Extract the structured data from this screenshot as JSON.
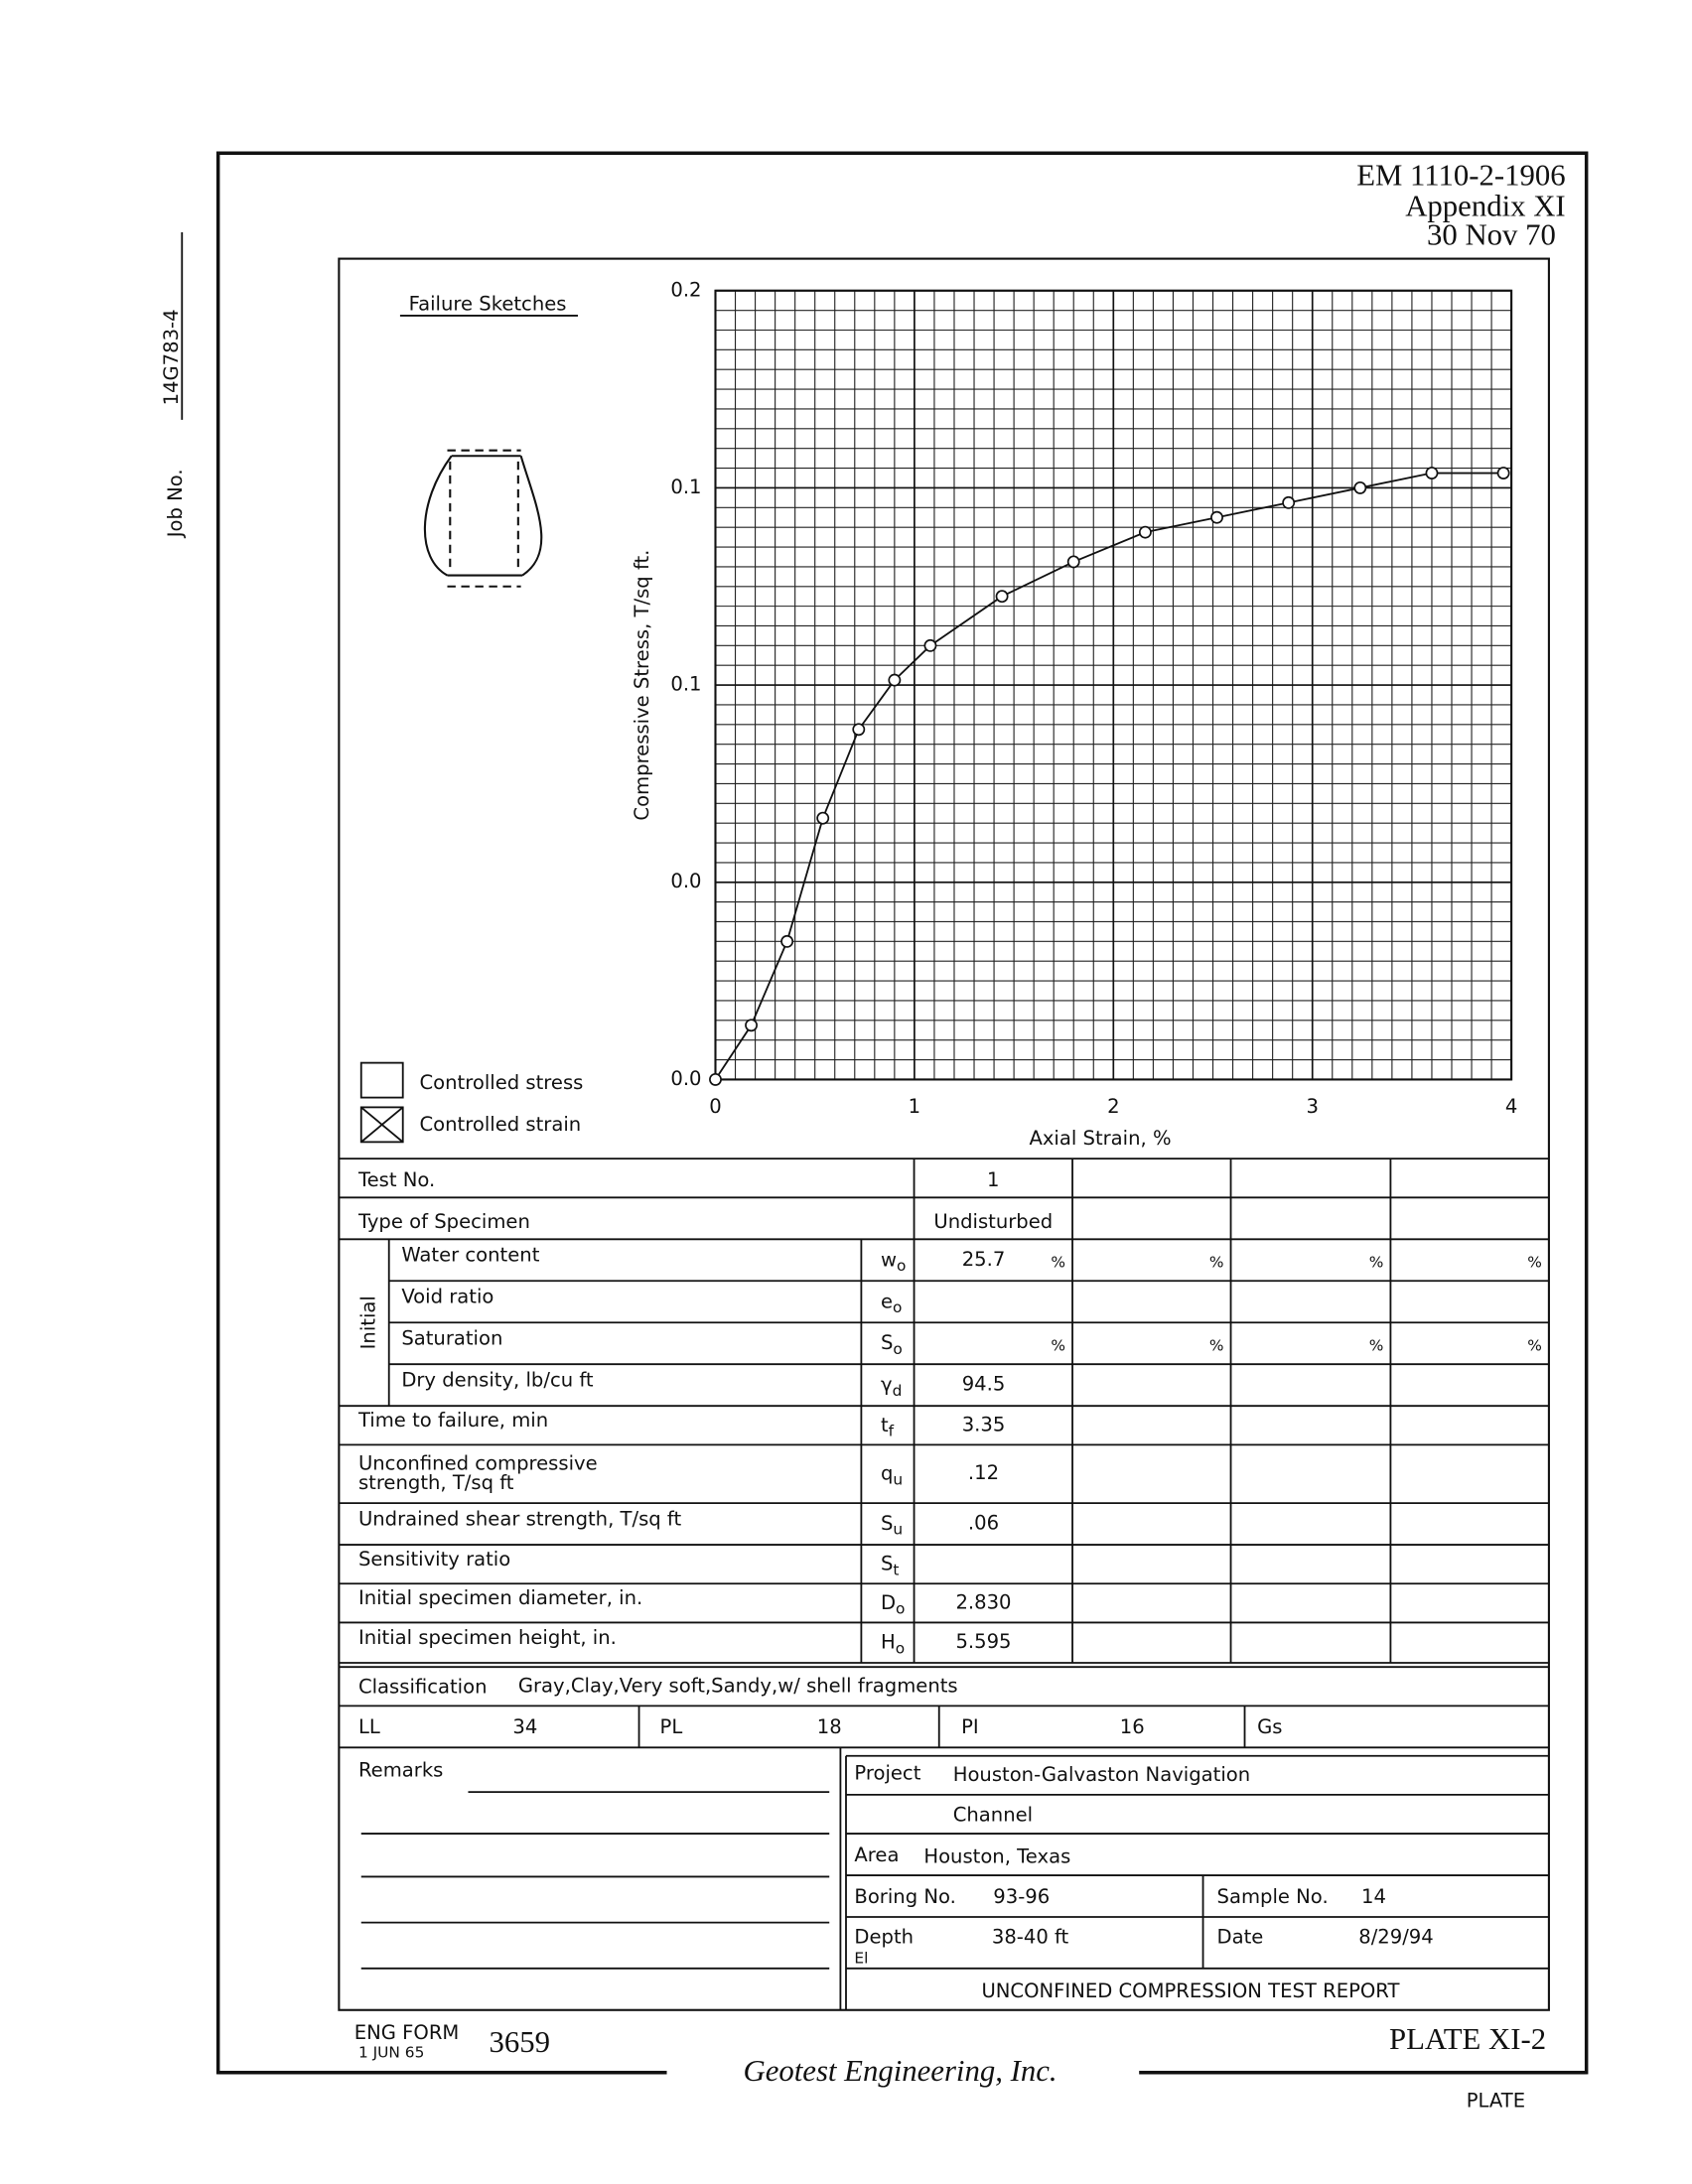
{
  "header": {
    "doc_number": "EM 1110-2-1906",
    "appendix": "Appendix XI",
    "date": "30 Nov 70"
  },
  "job": {
    "label": "Job No.",
    "value": "14G783-4"
  },
  "sketches": {
    "title": "Failure Sketches"
  },
  "legend": [
    "Controlled stress",
    "Controlled strain"
  ],
  "chart_data": {
    "type": "line",
    "x_label": "Axial Strain, %",
    "y_label": "Compressive Stress, T/sq ft.",
    "x": [
      0,
      0.18,
      0.36,
      0.54,
      0.72,
      0.9,
      1.08,
      1.44,
      1.8,
      2.16,
      2.52,
      2.88,
      3.24,
      3.6,
      3.96
    ],
    "values": [
      0,
      0.011,
      0.028,
      0.053,
      0.071,
      0.081,
      0.088,
      0.098,
      0.105,
      0.111,
      0.114,
      0.117,
      0.12,
      0.123,
      0.123
    ],
    "color": "#111",
    "xlim": [
      0,
      4
    ],
    "xticks": [
      0,
      1,
      2,
      3,
      4
    ],
    "ylim": [
      0,
      0.16
    ],
    "yticks": [
      {
        "value": 0,
        "label": "0.0"
      },
      {
        "value": 0.04,
        "label": "0.0"
      },
      {
        "value": 0.08,
        "label": "0.1"
      },
      {
        "value": 0.12,
        "label": "0.1"
      },
      {
        "value": 0.16,
        "label": "0.2"
      }
    ],
    "grid": true
  },
  "table": {
    "test_no": {
      "label": "Test No.",
      "value": "1"
    },
    "specimen": {
      "label": "Type of Specimen",
      "value": "Undisturbed"
    },
    "initial_label": "Initial",
    "rows": [
      {
        "label": [
          "Water content"
        ],
        "symbol": {
          "base": "w",
          "sub": "o"
        },
        "value": "25.7",
        "unit": "%"
      },
      {
        "label": [
          "Void ratio"
        ],
        "symbol": {
          "base": "e",
          "sub": "o"
        }
      },
      {
        "label": [
          "Saturation"
        ],
        "symbol": {
          "base": "S",
          "sub": "o"
        },
        "unit": "%"
      },
      {
        "label": [
          "Dry density, lb/cu ft"
        ],
        "symbol": {
          "base": "γ",
          "sub": "d"
        },
        "value": "94.5"
      },
      {
        "label": [
          "Time to failure, min"
        ],
        "symbol": {
          "base": "t",
          "sub": "f"
        },
        "value": "3.35"
      },
      {
        "label": [
          "Unconfined compressive",
          "strength, T/sq ft"
        ],
        "symbol": {
          "base": "q",
          "sub": "u"
        },
        "value": ".12"
      },
      {
        "label": [
          "Undrained shear strength, T/sq ft"
        ],
        "symbol": {
          "base": "S",
          "sub": "u"
        },
        "value": ".06"
      },
      {
        "label": [
          "Sensitivity ratio"
        ],
        "symbol": {
          "base": "S",
          "sub": "t"
        }
      },
      {
        "label": [
          "Initial specimen diameter, in."
        ],
        "symbol": {
          "base": "D",
          "sub": "o"
        },
        "value": "2.830"
      },
      {
        "label": [
          "Initial specimen height, in."
        ],
        "symbol": {
          "base": "H",
          "sub": "o"
        },
        "value": "5.595"
      }
    ],
    "classification": {
      "label": "Classification",
      "value": "Gray,Clay,Very soft,Sandy,w/ shell fragments"
    },
    "limits": {
      "LL": {
        "label": "LL",
        "value": "34"
      },
      "PL": {
        "label": "PL",
        "value": "18"
      },
      "PI": {
        "label": "PI",
        "value": "16"
      },
      "Gs": {
        "label": "Gs"
      }
    }
  },
  "remarks": {
    "label": "Remarks"
  },
  "info": {
    "project_label": "Project",
    "project": [
      "Houston-Galvaston Navigation",
      "Channel"
    ],
    "area_label": "Area",
    "area": "Houston, Texas",
    "boring_label": "Boring No.",
    "boring": "93-96",
    "sample_label": "Sample No.",
    "sample": "14",
    "depth_label": "Depth",
    "depth": "38-40 ft",
    "el_label": "El",
    "date_label": "Date",
    "date": "8/29/94",
    "report_title": "UNCONFINED COMPRESSION TEST REPORT"
  },
  "footer": {
    "form": "ENG FORM",
    "form_date": "1 JUN 65",
    "form_no": "3659",
    "plate": "PLATE XI-2",
    "company": "Geotest Engineering, Inc.",
    "plate_bottom": "PLATE"
  }
}
